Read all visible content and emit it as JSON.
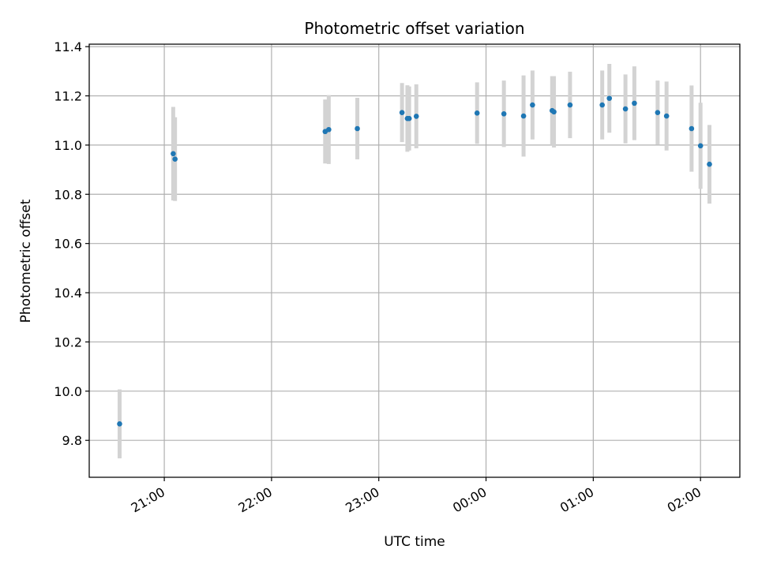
{
  "chart_data": {
    "type": "scatter",
    "title": "Photometric offset variation",
    "xlabel": "UTC time",
    "ylabel": "Photometric offset",
    "xlim": [
      "20:18",
      "02:22"
    ],
    "ylim": [
      9.65,
      11.41
    ],
    "grid": true,
    "xticks": [
      "21:00",
      "22:00",
      "23:00",
      "00:00",
      "01:00",
      "02:00"
    ],
    "yticks": [
      "9.8",
      "10.0",
      "10.2",
      "10.4",
      "10.6",
      "10.8",
      "11.0",
      "11.2",
      "11.4"
    ],
    "colors": {
      "point": "#1f77b4",
      "errorbar": "#d3d3d3",
      "grid": "#b0b0b0"
    },
    "points": [
      {
        "x": "20:35",
        "y": 9.867,
        "err": 0.14
      },
      {
        "x": "21:05",
        "y": 10.965,
        "err": 0.19
      },
      {
        "x": "21:06",
        "y": 10.943,
        "err": 0.17
      },
      {
        "x": "22:30",
        "y": 11.055,
        "err": 0.13
      },
      {
        "x": "22:32",
        "y": 11.063,
        "err": 0.14
      },
      {
        "x": "22:48",
        "y": 11.067,
        "err": 0.125
      },
      {
        "x": "23:13",
        "y": 11.132,
        "err": 0.12
      },
      {
        "x": "23:16",
        "y": 11.108,
        "err": 0.135
      },
      {
        "x": "23:17",
        "y": 11.108,
        "err": 0.13
      },
      {
        "x": "23:21",
        "y": 11.117,
        "err": 0.13
      },
      {
        "x": "23:55",
        "y": 11.13,
        "err": 0.125
      },
      {
        "x": "00:10",
        "y": 11.127,
        "err": 0.135
      },
      {
        "x": "00:21",
        "y": 11.118,
        "err": 0.165
      },
      {
        "x": "00:26",
        "y": 11.163,
        "err": 0.14
      },
      {
        "x": "00:37",
        "y": 11.14,
        "err": 0.14
      },
      {
        "x": "00:38",
        "y": 11.135,
        "err": 0.145
      },
      {
        "x": "00:47",
        "y": 11.163,
        "err": 0.135
      },
      {
        "x": "01:05",
        "y": 11.163,
        "err": 0.14
      },
      {
        "x": "01:09",
        "y": 11.19,
        "err": 0.14
      },
      {
        "x": "01:18",
        "y": 11.147,
        "err": 0.14
      },
      {
        "x": "01:23",
        "y": 11.17,
        "err": 0.15
      },
      {
        "x": "01:36",
        "y": 11.132,
        "err": 0.13
      },
      {
        "x": "01:41",
        "y": 11.118,
        "err": 0.14
      },
      {
        "x": "01:55",
        "y": 11.067,
        "err": 0.175
      },
      {
        "x": "02:00",
        "y": 10.997,
        "err": 0.175
      },
      {
        "x": "02:05",
        "y": 10.922,
        "err": 0.16
      }
    ]
  }
}
